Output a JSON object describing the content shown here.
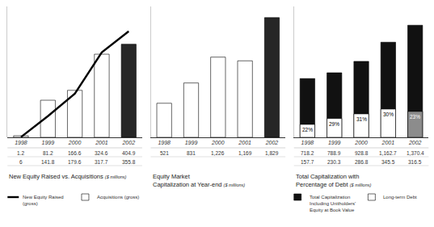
{
  "chart_data": [
    {
      "type": "bar",
      "title": "New Equity Raised vs. Acquisitions",
      "subtitle": "($ millions)",
      "categories": [
        "1998",
        "1999",
        "2000",
        "2001",
        "2002"
      ],
      "series": [
        {
          "name": "New Equity Raised (gross)",
          "type": "line",
          "color": "#000000",
          "values": [
            1.2,
            81.2,
            166.6,
            324.6,
            404.9
          ]
        },
        {
          "name": "Acquisitions (gross)",
          "type": "bar",
          "colors": [
            "#ffffff",
            "#ffffff",
            "#ffffff",
            "#ffffff",
            "#262626"
          ],
          "values": [
            6,
            141.8,
            179.6,
            317.7,
            355.8
          ]
        }
      ],
      "ylim": [
        0,
        500
      ],
      "tick_labels": "x",
      "data_labels": true,
      "legend": "bottom left",
      "stacked": false
    },
    {
      "type": "bar",
      "title": "Equity Market Capitalization at Year-end",
      "subtitle": "($ millions)",
      "categories": [
        "1998",
        "1999",
        "2000",
        "2001",
        "2002"
      ],
      "values": [
        521,
        831,
        1226,
        1169,
        1829
      ],
      "value_labels": [
        "521",
        "831",
        "1,226",
        "1,169",
        "1,829"
      ],
      "colors": [
        "#ffffff",
        "#ffffff",
        "#ffffff",
        "#ffffff",
        "#262626"
      ],
      "ylim": [
        0,
        2000
      ],
      "tick_labels": "x",
      "data_labels": true
    },
    {
      "type": "bar",
      "title": "Total Capitalization with Percentage of Debt",
      "subtitle": "($ millions)",
      "categories": [
        "1998",
        "1999",
        "2000",
        "2001",
        "2002"
      ],
      "series": [
        {
          "name": "Total Capitalization Including Unitholders' Equity at Book Value",
          "color": "#111111",
          "values": [
            718.2,
            788.9,
            928.8,
            1162.7,
            1370.4
          ],
          "value_labels": [
            "718.2",
            "788.9",
            "928.8",
            "1,162.7",
            "1,370.4"
          ]
        },
        {
          "name": "Long-term Debt",
          "colors": [
            "#ffffff",
            "#ffffff",
            "#ffffff",
            "#ffffff",
            "#8c8c8c"
          ],
          "values": [
            157.7,
            230.3,
            286.8,
            345.5,
            316.5
          ],
          "percent_labels": [
            "22%",
            "29%",
            "31%",
            "30%",
            "23%"
          ]
        }
      ],
      "ylim": [
        0,
        1600
      ],
      "tick_labels": "x",
      "data_labels": true,
      "legend": "bottom left",
      "stacked": false
    }
  ]
}
